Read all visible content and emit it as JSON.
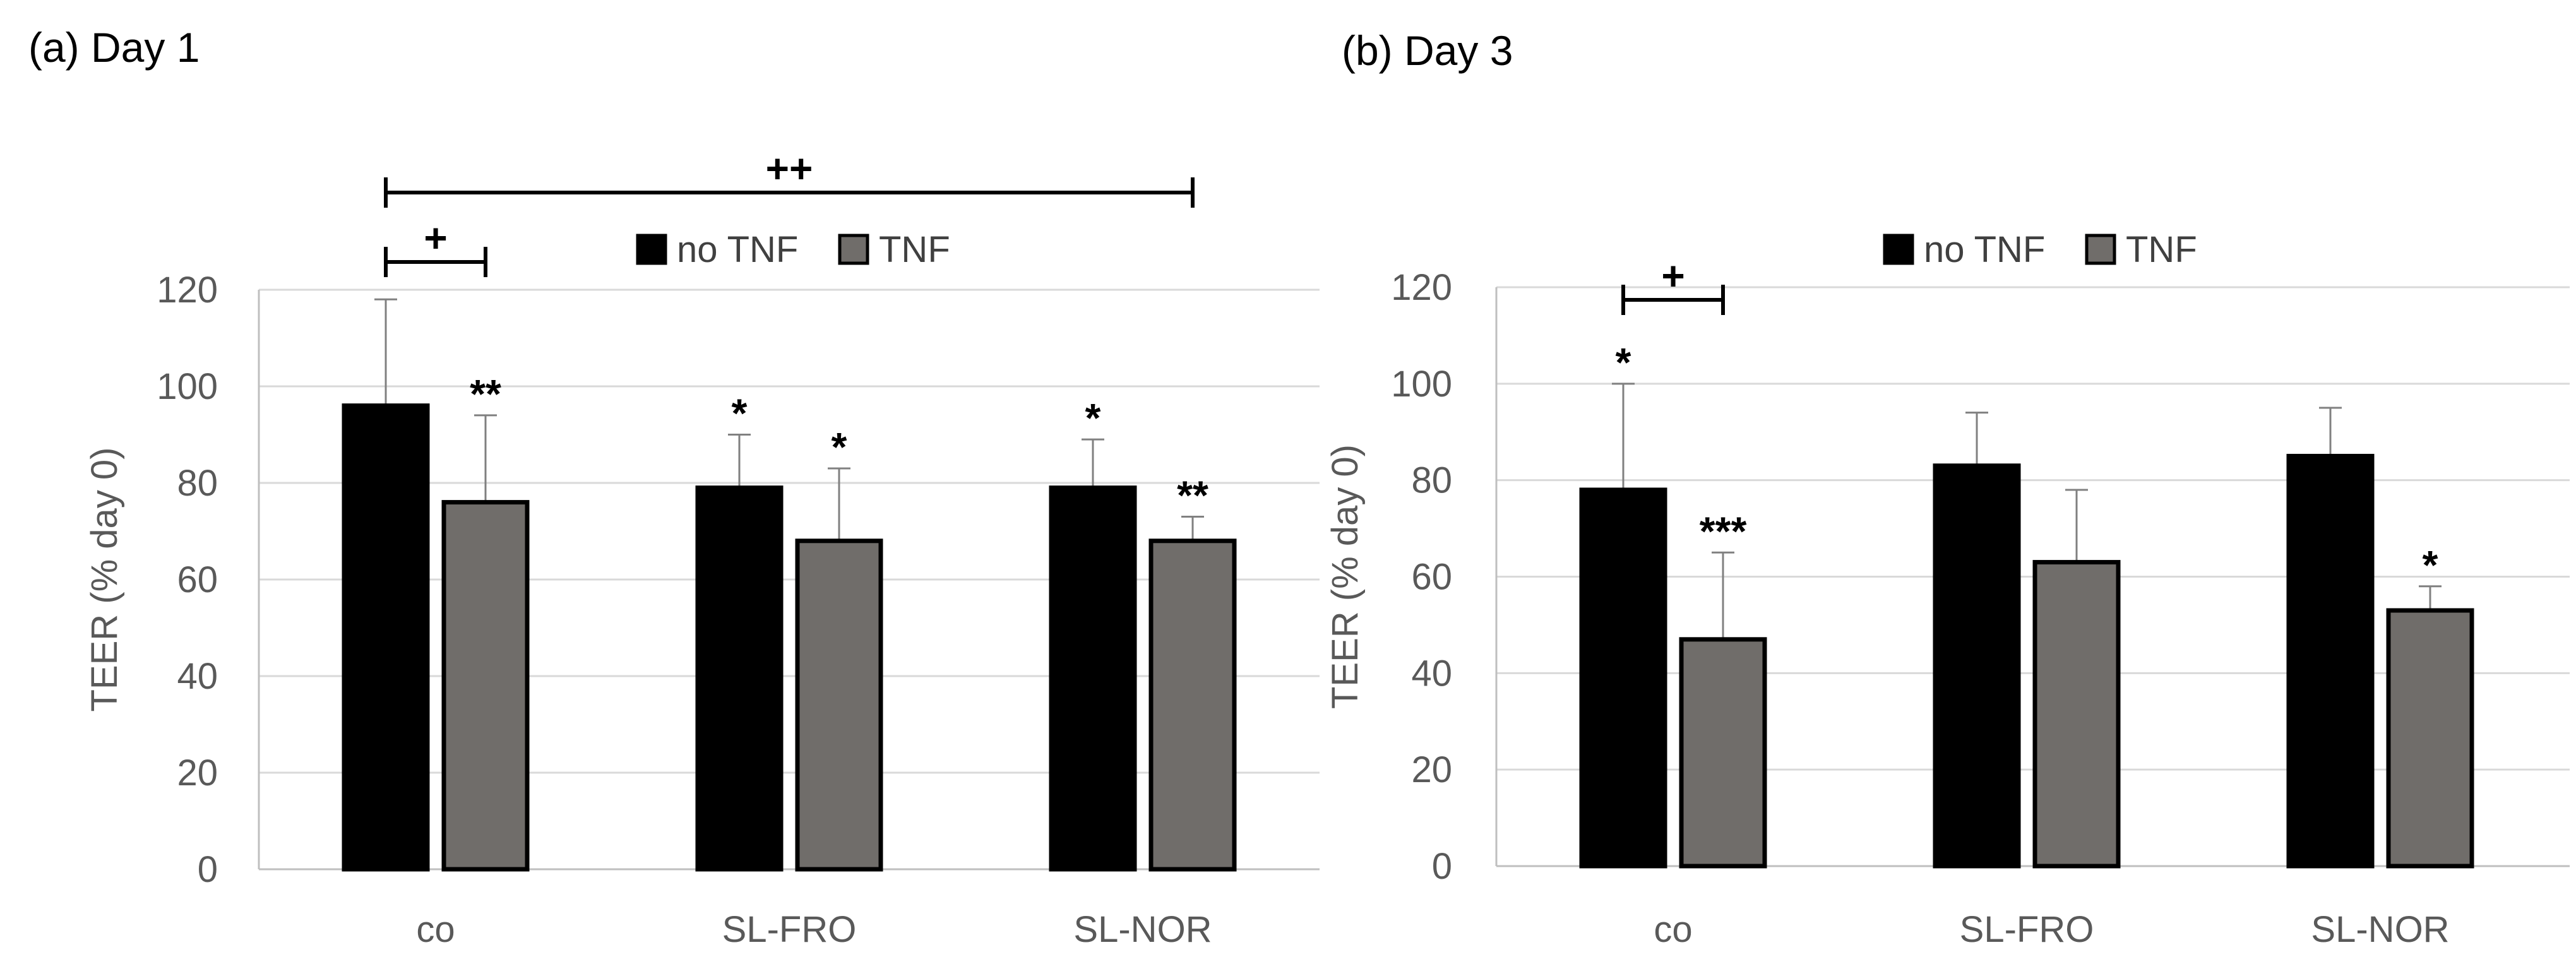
{
  "chart_data": [
    {
      "type": "bar",
      "title": "(a) Day 1",
      "xlabel": "",
      "ylabel": "TEER (% day 0)",
      "ylim": [
        0,
        120
      ],
      "yticks": [
        0,
        20,
        40,
        60,
        80,
        100,
        120
      ],
      "grid": true,
      "legend_position": "top-center",
      "categories": [
        "co",
        "SL-FRO",
        "SL-NOR"
      ],
      "series": [
        {
          "name": "no TNF",
          "color": "#000000",
          "values": [
            96,
            79,
            79
          ],
          "errors": [
            22,
            11,
            10
          ],
          "annotations": [
            "",
            "*",
            "*"
          ]
        },
        {
          "name": "TNF",
          "color": "#706D6A",
          "values": [
            76,
            68,
            68
          ],
          "errors": [
            18,
            15,
            5
          ],
          "annotations": [
            "**",
            "*",
            "**"
          ]
        }
      ],
      "brackets": [
        {
          "from": {
            "category": 0,
            "series": 0
          },
          "to": {
            "category": 0,
            "series": 1
          },
          "label": "+",
          "level": 1
        },
        {
          "from": {
            "category": 0,
            "series": 0
          },
          "to": {
            "category": 2,
            "series": 1
          },
          "label": "++",
          "level": 2
        }
      ]
    },
    {
      "type": "bar",
      "title": "(b) Day 3",
      "xlabel": "",
      "ylabel": "TEER (% day 0)",
      "ylim": [
        0,
        120
      ],
      "yticks": [
        0,
        20,
        40,
        60,
        80,
        100,
        120
      ],
      "grid": true,
      "legend_position": "top-center",
      "categories": [
        "co",
        "SL-FRO",
        "SL-NOR"
      ],
      "series": [
        {
          "name": "no TNF",
          "color": "#000000",
          "values": [
            78,
            83,
            85
          ],
          "errors": [
            22,
            11,
            10
          ],
          "annotations": [
            "*",
            "",
            ""
          ]
        },
        {
          "name": "TNF",
          "color": "#706D6A",
          "values": [
            47,
            63,
            53
          ],
          "errors": [
            18,
            15,
            5
          ],
          "annotations": [
            "***",
            "",
            "*"
          ]
        }
      ],
      "brackets": [
        {
          "from": {
            "category": 0,
            "series": 0
          },
          "to": {
            "category": 0,
            "series": 1
          },
          "label": "+",
          "level": 1
        }
      ]
    }
  ]
}
